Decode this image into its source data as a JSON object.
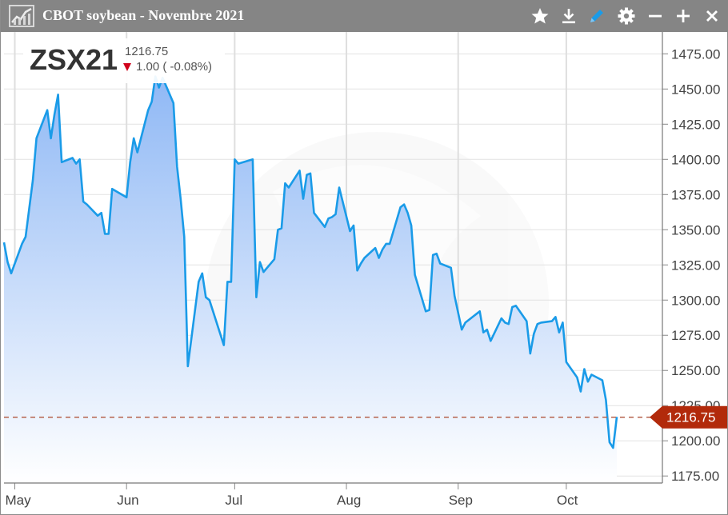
{
  "window": {
    "title": "CBOT soybean - Novembre 2021",
    "icons": [
      "chart-icon",
      "star-icon",
      "download-icon",
      "pen-icon",
      "gear-icon",
      "minimize-icon",
      "add-icon",
      "close-icon"
    ]
  },
  "quote": {
    "symbol": "ZSX21",
    "last": "1216.75",
    "change": "1.00 ( -0.08%)",
    "direction": "down"
  },
  "colors": {
    "line": "#1a9be8",
    "area_top": "#8fb8f5",
    "area_bottom": "#ffffff",
    "price_tag": "#b22a0b",
    "titlebar": "#858585"
  },
  "chart_data": {
    "type": "area",
    "y_axis_position": "right",
    "ylim": [
      1170,
      1482
    ],
    "yticks": [
      "1175.00",
      "1200.00",
      "1225.00",
      "1250.00",
      "1275.00",
      "1300.00",
      "1325.00",
      "1350.00",
      "1375.00",
      "1400.00",
      "1425.00",
      "1450.00",
      "1475.00"
    ],
    "xticks": [
      "May",
      "Jun",
      "Jul",
      "Aug",
      "Sep",
      "Oct"
    ],
    "xtick_dates": [
      "2021-05-01",
      "2021-06-01",
      "2021-07-01",
      "2021-08-01",
      "2021-09-01",
      "2021-10-01"
    ],
    "last_price": 1216.75,
    "last_price_label": "1216.75",
    "series": [
      {
        "x": [
          "2021-04-28",
          "2021-04-29",
          "2021-04-30",
          "2021-05-03",
          "2021-05-04",
          "2021-05-05",
          "2021-05-06",
          "2021-05-07",
          "2021-05-10",
          "2021-05-11",
          "2021-05-12",
          "2021-05-13",
          "2021-05-14",
          "2021-05-17",
          "2021-05-18",
          "2021-05-19",
          "2021-05-20",
          "2021-05-21",
          "2021-05-24",
          "2021-05-25",
          "2021-05-26",
          "2021-05-27",
          "2021-05-28",
          "2021-06-01",
          "2021-06-02",
          "2021-06-03",
          "2021-06-04",
          "2021-06-07",
          "2021-06-08",
          "2021-06-09",
          "2021-06-10",
          "2021-06-11",
          "2021-06-14",
          "2021-06-15",
          "2021-06-16",
          "2021-06-17",
          "2021-06-18",
          "2021-06-21",
          "2021-06-22",
          "2021-06-23",
          "2021-06-24",
          "2021-06-25",
          "2021-06-28",
          "2021-06-29",
          "2021-06-30",
          "2021-07-01",
          "2021-07-02",
          "2021-07-06",
          "2021-07-07",
          "2021-07-08",
          "2021-07-09",
          "2021-07-12",
          "2021-07-13",
          "2021-07-14",
          "2021-07-15",
          "2021-07-16",
          "2021-07-19",
          "2021-07-20",
          "2021-07-21",
          "2021-07-22",
          "2021-07-23",
          "2021-07-26",
          "2021-07-27",
          "2021-07-28",
          "2021-07-29",
          "2021-07-30",
          "2021-08-02",
          "2021-08-03",
          "2021-08-04",
          "2021-08-05",
          "2021-08-06",
          "2021-08-09",
          "2021-08-10",
          "2021-08-11",
          "2021-08-12",
          "2021-08-13",
          "2021-08-16",
          "2021-08-17",
          "2021-08-18",
          "2021-08-19",
          "2021-08-20",
          "2021-08-23",
          "2021-08-24",
          "2021-08-25",
          "2021-08-26",
          "2021-08-27",
          "2021-08-30",
          "2021-08-31",
          "2021-09-01",
          "2021-09-02",
          "2021-09-03",
          "2021-09-07",
          "2021-09-08",
          "2021-09-09",
          "2021-09-10",
          "2021-09-13",
          "2021-09-14",
          "2021-09-15",
          "2021-09-16",
          "2021-09-17",
          "2021-09-20",
          "2021-09-21",
          "2021-09-22",
          "2021-09-23",
          "2021-09-24",
          "2021-09-27",
          "2021-09-28",
          "2021-09-29",
          "2021-09-30",
          "2021-10-01",
          "2021-10-04",
          "2021-10-05",
          "2021-10-06",
          "2021-10-07",
          "2021-10-08",
          "2021-10-11",
          "2021-10-12",
          "2021-10-13",
          "2021-10-14",
          "2021-10-15"
        ],
        "y": [
          1341,
          1327,
          1319,
          1340,
          1345,
          1365,
          1385,
          1415,
          1435,
          1415,
          1432,
          1446,
          1398,
          1401,
          1397,
          1400,
          1370,
          1368,
          1360,
          1362,
          1347,
          1347,
          1379,
          1373,
          1398,
          1415,
          1405,
          1435,
          1441,
          1459,
          1451,
          1458,
          1440,
          1395,
          1372,
          1345,
          1253,
          1313,
          1319,
          1302,
          1300,
          1292,
          1268,
          1313,
          1313,
          1400,
          1397,
          1400,
          1302,
          1327,
          1320,
          1329,
          1350,
          1351,
          1383,
          1380,
          1392,
          1372,
          1389,
          1390,
          1362,
          1352,
          1358,
          1359,
          1361,
          1380,
          1349,
          1353,
          1321,
          1326,
          1330,
          1337,
          1330,
          1336,
          1340,
          1340,
          1366,
          1368,
          1362,
          1353,
          1318,
          1292,
          1293,
          1332,
          1333,
          1326,
          1323,
          1303,
          1291,
          1279,
          1284,
          1292,
          1277,
          1279,
          1271,
          1287,
          1284,
          1283,
          1295,
          1296,
          1285,
          1262,
          1276,
          1283,
          1284,
          1285,
          1288,
          1277,
          1284,
          1256,
          1245,
          1235,
          1251,
          1242,
          1247,
          1243,
          1229,
          1199,
          1195,
          1217
        ]
      }
    ]
  }
}
